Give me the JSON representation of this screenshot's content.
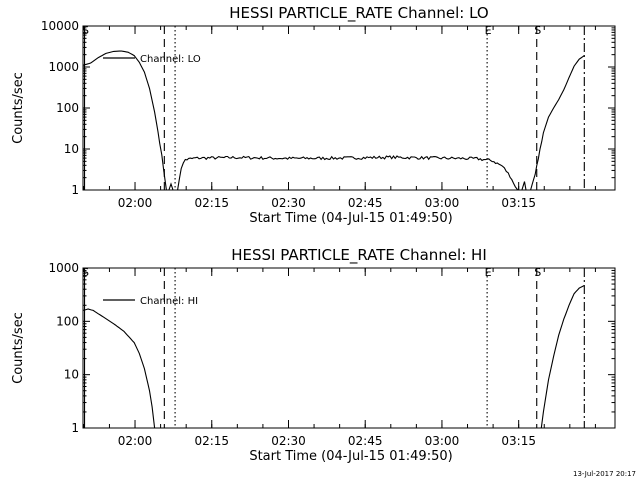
{
  "chart_data": [
    {
      "type": "line",
      "title": "HESSI PARTICLE_RATE Channel: LO",
      "xlabel": "Start Time (04-Jul-15 01:49:50)",
      "ylabel": "Counts/sec",
      "x_unit": "minutes after 01:49:50",
      "xlim": [
        0,
        104
      ],
      "ylim": [
        1,
        10000
      ],
      "yscale": "log",
      "x_ticks": [
        {
          "label": "02:00",
          "x": 10.17
        },
        {
          "label": "02:15",
          "x": 25.17
        },
        {
          "label": "02:30",
          "x": 40.17
        },
        {
          "label": "02:45",
          "x": 55.17
        },
        {
          "label": "03:00",
          "x": 70.17
        },
        {
          "label": "03:15",
          "x": 85.17
        }
      ],
      "y_ticks": [
        {
          "label": "1",
          "y": 1
        },
        {
          "label": "10",
          "y": 10
        },
        {
          "label": "100",
          "y": 100
        },
        {
          "label": "1000",
          "y": 1000
        },
        {
          "label": "10000",
          "y": 10000
        }
      ],
      "legend": {
        "label": "Channel: LO",
        "position": "top-left"
      },
      "markers": [
        {
          "label": "S",
          "x": 0.3,
          "style": "solid"
        },
        {
          "label": "",
          "x": 15.9,
          "style": "dashed"
        },
        {
          "label": "",
          "x": 18.0,
          "style": "dotted"
        },
        {
          "label": "E",
          "x": 79.0,
          "style": "dotted"
        },
        {
          "label": "S",
          "x": 88.7,
          "style": "dashed"
        },
        {
          "label": "",
          "x": 98.0,
          "style": "dashdot"
        }
      ],
      "series": [
        {
          "noise": 0.5,
          "segments": [
            [
              [
                0,
                1100
              ],
              [
                1.5,
                1250
              ],
              [
                3,
                1700
              ],
              [
                4.5,
                2150
              ],
              [
                6,
                2400
              ],
              [
                7.5,
                2450
              ],
              [
                8.8,
                2300
              ],
              [
                10,
                1900
              ],
              [
                11,
                1300
              ],
              [
                12,
                750
              ],
              [
                13,
                300
              ],
              [
                14,
                80
              ],
              [
                15,
                15
              ],
              [
                15.8,
                3
              ],
              [
                16.3,
                1
              ]
            ],
            [
              [
                16.8,
                1
              ],
              [
                17.2,
                1.4
              ],
              [
                17.6,
                1.0
              ],
              [
                18,
                1
              ]
            ],
            [
              [
                18.5,
                1
              ],
              [
                19.2,
                3.5
              ],
              [
                20,
                5.5
              ],
              [
                22,
                6.0
              ],
              [
                30,
                6.2
              ],
              [
                40,
                5.9
              ],
              [
                50,
                6.0
              ],
              [
                60,
                6.3
              ],
              [
                70,
                6.0
              ],
              [
                77,
                5.8
              ],
              [
                80,
                5.2
              ],
              [
                82,
                3.8
              ],
              [
                83.5,
                2.2
              ],
              [
                84.5,
                1.2
              ],
              [
                85,
                1
              ]
            ],
            [
              [
                85.8,
                1
              ],
              [
                86.3,
                1.6
              ],
              [
                86.6,
                1
              ]
            ],
            [
              [
                87.5,
                1
              ],
              [
                88.4,
                2.5
              ],
              [
                89,
                6
              ],
              [
                90,
                25
              ],
              [
                91,
                60
              ],
              [
                92,
                100
              ],
              [
                93,
                160
              ],
              [
                94,
                280
              ],
              [
                95,
                550
              ],
              [
                96,
                1050
              ],
              [
                97,
                1550
              ],
              [
                98,
                1900
              ]
            ]
          ]
        }
      ]
    },
    {
      "type": "line",
      "title": "HESSI PARTICLE_RATE Channel: HI",
      "xlabel": "Start Time (04-Jul-15 01:49:50)",
      "ylabel": "Counts/sec",
      "x_unit": "minutes after 01:49:50",
      "xlim": [
        0,
        104
      ],
      "ylim": [
        1,
        1000
      ],
      "yscale": "log",
      "x_ticks": [
        {
          "label": "02:00",
          "x": 10.17
        },
        {
          "label": "02:15",
          "x": 25.17
        },
        {
          "label": "02:30",
          "x": 40.17
        },
        {
          "label": "02:45",
          "x": 55.17
        },
        {
          "label": "03:00",
          "x": 70.17
        },
        {
          "label": "03:15",
          "x": 85.17
        }
      ],
      "y_ticks": [
        {
          "label": "1",
          "y": 1
        },
        {
          "label": "10",
          "y": 10
        },
        {
          "label": "100",
          "y": 100
        },
        {
          "label": "1000",
          "y": 1000
        }
      ],
      "legend": {
        "label": "Channel: HI",
        "position": "top-left"
      },
      "markers": [
        {
          "label": "S",
          "x": 0.3,
          "style": "solid"
        },
        {
          "label": "",
          "x": 15.9,
          "style": "dashed"
        },
        {
          "label": "",
          "x": 18.0,
          "style": "dotted"
        },
        {
          "label": "E",
          "x": 79.0,
          "style": "dotted"
        },
        {
          "label": "S",
          "x": 88.7,
          "style": "dashed"
        },
        {
          "label": "",
          "x": 98.0,
          "style": "dashdot"
        }
      ],
      "series": [
        {
          "noise": 0,
          "segments": [
            [
              [
                0,
                160
              ],
              [
                1,
                170
              ],
              [
                2,
                160
              ],
              [
                4,
                120
              ],
              [
                6,
                90
              ],
              [
                8,
                65
              ],
              [
                10,
                40
              ],
              [
                11,
                25
              ],
              [
                12,
                13
              ],
              [
                13,
                5
              ],
              [
                13.5,
                2.5
              ],
              [
                14,
                1
              ]
            ],
            [
              [
                89.6,
                1
              ],
              [
                90,
                2
              ],
              [
                91,
                8
              ],
              [
                92,
                22
              ],
              [
                93,
                55
              ],
              [
                94,
                110
              ],
              [
                95,
                200
              ],
              [
                96,
                330
              ],
              [
                97,
                420
              ],
              [
                98,
                470
              ]
            ]
          ]
        }
      ]
    }
  ],
  "footer": {
    "timestamp": "13-Jul-2017 20:17"
  }
}
